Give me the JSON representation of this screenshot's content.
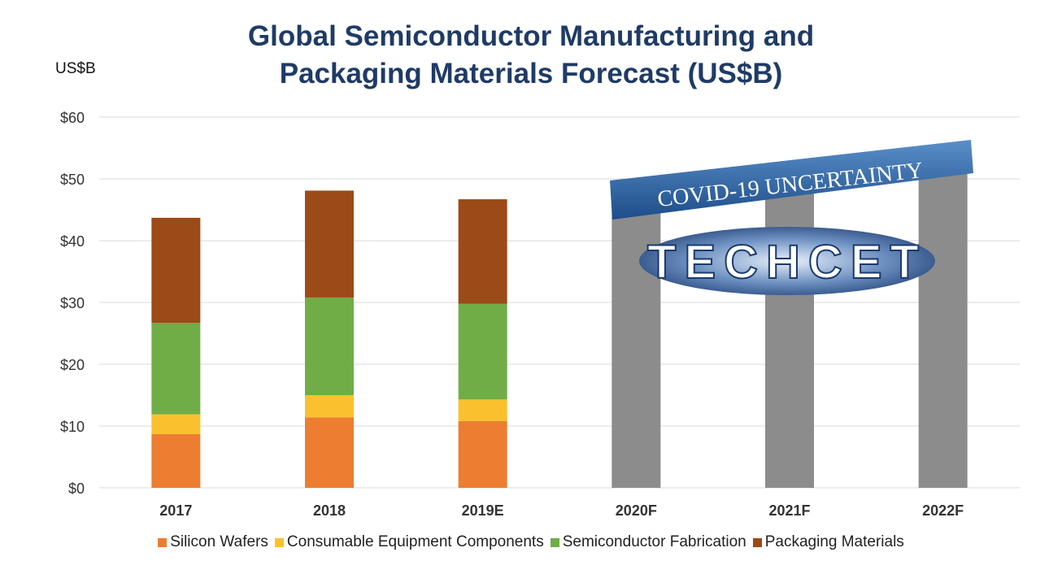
{
  "chart_data": {
    "type": "bar",
    "stacked": true,
    "title_lines": [
      "Global Semiconductor Manufacturing and",
      "Packaging Materials Forecast (US$B)"
    ],
    "unit_label": "US$B",
    "ylim": [
      0,
      60
    ],
    "yticks": [
      "$0",
      "$10",
      "$20",
      "$30",
      "$40",
      "$50",
      "$60"
    ],
    "ytick_values": [
      0,
      10,
      20,
      30,
      40,
      50,
      60
    ],
    "grid": true,
    "categories": [
      "2017",
      "2018",
      "2019E",
      "2020F",
      "2021F",
      "2022F"
    ],
    "series": [
      {
        "name": "Silicon Wafers",
        "color": "#ed7d31",
        "values": [
          8.7,
          11.4,
          10.8,
          null,
          null,
          null
        ]
      },
      {
        "name": "Consumable Equipment Components",
        "color": "#fbc02d",
        "values": [
          3.2,
          3.6,
          3.5,
          null,
          null,
          null
        ]
      },
      {
        "name": "Semiconductor Fabrication",
        "color": "#70ad47",
        "values": [
          14.8,
          15.8,
          15.5,
          null,
          null,
          null
        ]
      },
      {
        "name": "Packaging Materials",
        "color": "#9c4a17",
        "values": [
          17.0,
          17.3,
          16.9,
          null,
          null,
          null
        ]
      }
    ],
    "forecast_totals": {
      "categories": [
        "2020F",
        "2021F",
        "2022F"
      ],
      "values": [
        45,
        48,
        51
      ],
      "color": "#8c8c8c"
    },
    "legend_position": "bottom",
    "overlay": {
      "banner_text": "COVID-19 UNCERTAINTY",
      "logo_text": "TECHCET"
    }
  }
}
